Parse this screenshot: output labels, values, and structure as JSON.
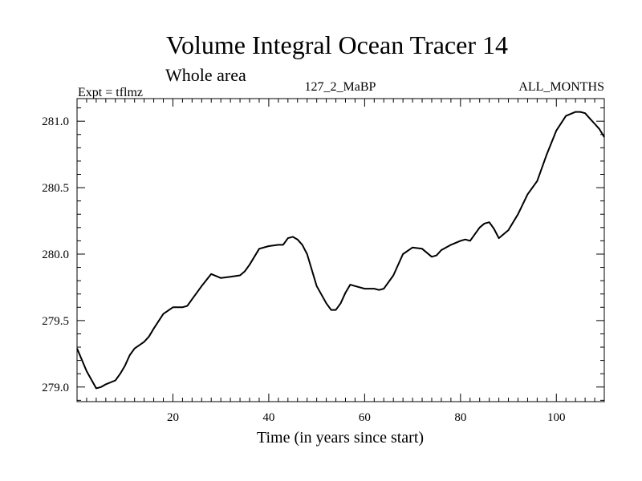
{
  "chart_data": {
    "type": "line",
    "title": "Volume Integral Ocean Tracer 14",
    "subtitle": "Whole area",
    "expt_label": "Expt = tflmz",
    "run_label": "127_2_MaBP",
    "period_label": "ALL_MONTHS",
    "xlabel": "Time (in years since start)",
    "ylabel": "",
    "xlim": [
      0,
      110
    ],
    "ylim": [
      278.89,
      281.17
    ],
    "xticks": [
      {
        "value": 20,
        "label": "20"
      },
      {
        "value": 40,
        "label": "40"
      },
      {
        "value": 60,
        "label": "60"
      },
      {
        "value": 80,
        "label": "80"
      },
      {
        "value": 100,
        "label": "100"
      }
    ],
    "yticks": [
      {
        "value": 279.0,
        "label": "279.0"
      },
      {
        "value": 279.5,
        "label": "279.5"
      },
      {
        "value": 280.0,
        "label": "280.0"
      },
      {
        "value": 280.5,
        "label": "280.5"
      },
      {
        "value": 281.0,
        "label": "281.0"
      }
    ],
    "grid": false,
    "line_color": "#000000",
    "series": [
      {
        "x": [
          0,
          2,
          4,
          5,
          6,
          8,
          9,
          10,
          11,
          12,
          14,
          15,
          16,
          18,
          20,
          22,
          23,
          24,
          26,
          28,
          30,
          32,
          34,
          35,
          36,
          38,
          40,
          42,
          43,
          44,
          45,
          46,
          47,
          48,
          50,
          52,
          53,
          54,
          55,
          56,
          57,
          58,
          60,
          62,
          63,
          64,
          66,
          68,
          70,
          72,
          73,
          74,
          75,
          76,
          78,
          80,
          81,
          82,
          84,
          85,
          86,
          87,
          88,
          90,
          92,
          94,
          96,
          98,
          100,
          102,
          104,
          105,
          106,
          107,
          108,
          109,
          110
        ],
        "y": [
          279.29,
          279.12,
          278.99,
          279.0,
          279.02,
          279.05,
          279.1,
          279.16,
          279.24,
          279.29,
          279.34,
          279.38,
          279.44,
          279.55,
          279.6,
          279.6,
          279.61,
          279.66,
          279.76,
          279.85,
          279.82,
          279.83,
          279.84,
          279.87,
          279.92,
          280.04,
          280.06,
          280.07,
          280.07,
          280.12,
          280.13,
          280.11,
          280.07,
          280.0,
          279.76,
          279.63,
          279.58,
          279.58,
          279.63,
          279.71,
          279.77,
          279.76,
          279.74,
          279.74,
          279.73,
          279.74,
          279.84,
          280.0,
          280.05,
          280.04,
          280.01,
          279.98,
          279.99,
          280.03,
          280.07,
          280.1,
          280.11,
          280.1,
          280.2,
          280.23,
          280.24,
          280.19,
          280.12,
          280.18,
          280.3,
          280.45,
          280.55,
          280.75,
          280.93,
          281.04,
          281.07,
          281.07,
          281.06,
          281.02,
          280.98,
          280.94,
          280.88
        ]
      }
    ]
  }
}
